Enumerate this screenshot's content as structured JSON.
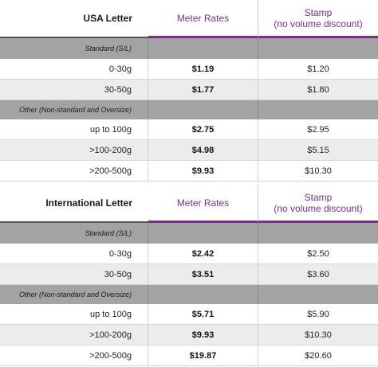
{
  "tables": [
    {
      "header": {
        "title": "USA Letter",
        "meter_label": "Meter Rates",
        "stamp_label_line1": "Stamp",
        "stamp_label_line2": "(no volume discount)"
      },
      "sections": [
        {
          "label": "Standard (S/L)",
          "rows": [
            {
              "weight": "0-30g",
              "meter": "$1.19",
              "stamp": "$1.20"
            },
            {
              "weight": "30-50g",
              "meter": "$1.77",
              "stamp": "$1.80"
            }
          ]
        },
        {
          "label": "Other (Non-standard and Oversize)",
          "rows": [
            {
              "weight": "up to 100g",
              "meter": "$2.75",
              "stamp": "$2.95"
            },
            {
              "weight": ">100-200g",
              "meter": "$4.98",
              "stamp": "$5.15"
            },
            {
              "weight": ">200-500g",
              "meter": "$9.93",
              "stamp": "$10.30"
            }
          ]
        }
      ]
    },
    {
      "header": {
        "title": "International Letter",
        "meter_label": "Meter Rates",
        "stamp_label_line1": "Stamp",
        "stamp_label_line2": "(no volume discount)"
      },
      "sections": [
        {
          "label": "Standard (S/L)",
          "rows": [
            {
              "weight": "0-30g",
              "meter": "$2.42",
              "stamp": "$2.50"
            },
            {
              "weight": "30-50g",
              "meter": "$3.51",
              "stamp": "$3.60"
            }
          ]
        },
        {
          "label": "Other (Non-standard and Oversize)",
          "rows": [
            {
              "weight": "up to 100g",
              "meter": "$5.71",
              "stamp": "$5.90"
            },
            {
              "weight": ">100-200g",
              "meter": "$9.93",
              "stamp": "$10.30"
            },
            {
              "weight": ">200-500g",
              "meter": "$19.87",
              "stamp": "$20.60"
            }
          ]
        }
      ]
    }
  ],
  "colors": {
    "accent": "#7b2d8e",
    "section_bg": "#a3a3a3",
    "alt_row_bg": "#ececec"
  }
}
